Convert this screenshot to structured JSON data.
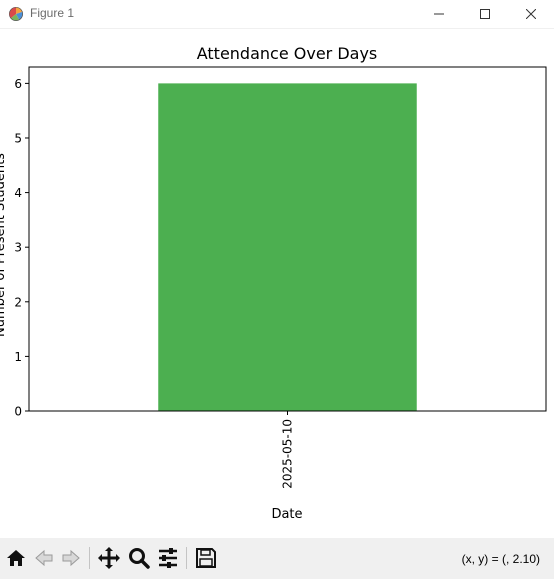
{
  "window": {
    "title": "Figure 1",
    "icon": "matplotlib-figure-icon",
    "controls": [
      "minimize-icon",
      "maximize-icon",
      "close-icon"
    ]
  },
  "chart_data": {
    "type": "bar",
    "title": "Attendance Over Days",
    "xlabel": "Date",
    "ylabel": "Number of Present Students",
    "categories": [
      "2025-05-10"
    ],
    "values": [
      6
    ],
    "ylim": [
      0,
      6.3
    ],
    "yticks": [
      0,
      1,
      2,
      3,
      4,
      5,
      6
    ],
    "bar_color": "#4caf50",
    "grid": false,
    "legend": "none"
  },
  "toolbar": {
    "buttons": [
      "home-icon",
      "back-icon",
      "forward-icon",
      "pan-icon",
      "zoom-icon",
      "configure-subplots-icon",
      "save-icon"
    ],
    "coords_text": "(x, y) = (, 2.10)"
  }
}
